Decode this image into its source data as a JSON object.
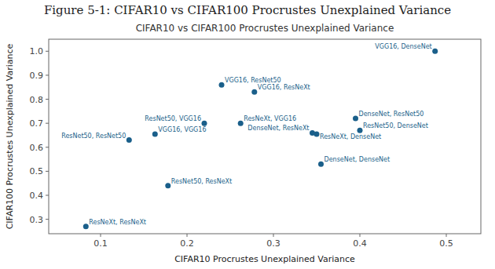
{
  "chart_data": {
    "type": "scatter",
    "title": "Figure 5-1: CIFAR10 vs CIFAR100 Procrustes Unexplained Variance",
    "subtitle": "CIFAR10 vs CIFAR100 Procrustes Unexplained Variance",
    "x_label": "CIFAR10 Procrustes Unexplained Variance",
    "y_label": "CIFAR100 Procrustes Unexplained Variance",
    "x": [
      0.083,
      0.133,
      0.163,
      0.178,
      0.22,
      0.24,
      0.262,
      0.278,
      0.345,
      0.35,
      0.355,
      0.395,
      0.4,
      0.487
    ],
    "values": [
      0.27,
      0.63,
      0.655,
      0.44,
      0.7,
      0.86,
      0.7,
      0.83,
      0.66,
      0.655,
      0.53,
      0.72,
      0.67,
      1.0
    ],
    "labels": [
      "ResNeXt, ResNeXt",
      "ResNet50, ResNet50",
      "VGG16, VGG16",
      "ResNet50, ResNeXt",
      "ResNet50, VGG16",
      "VGG16, ResNet50",
      "ResNeXt, VGG16",
      "VGG16, ResNeXt",
      "DenseNet, ResNeXt",
      "ResNeXt, DenseNet",
      "DenseNet, DenseNet",
      "DenseNet, ResNet50",
      "ResNet50, DenseNet",
      "VGG16, DenseNet"
    ],
    "color": "#1a5f8a",
    "marker": "circle",
    "xlim": [
      0.04,
      0.54
    ],
    "ylim": [
      0.24,
      1.05
    ],
    "xticks": [
      0.1,
      0.2,
      0.3,
      0.4,
      0.5
    ],
    "yticks": [
      0.3,
      0.4,
      0.5,
      0.6,
      0.7,
      0.8,
      0.9,
      {
        "value": 1.0,
        "label": "1.0"
      }
    ],
    "grid": false
  }
}
